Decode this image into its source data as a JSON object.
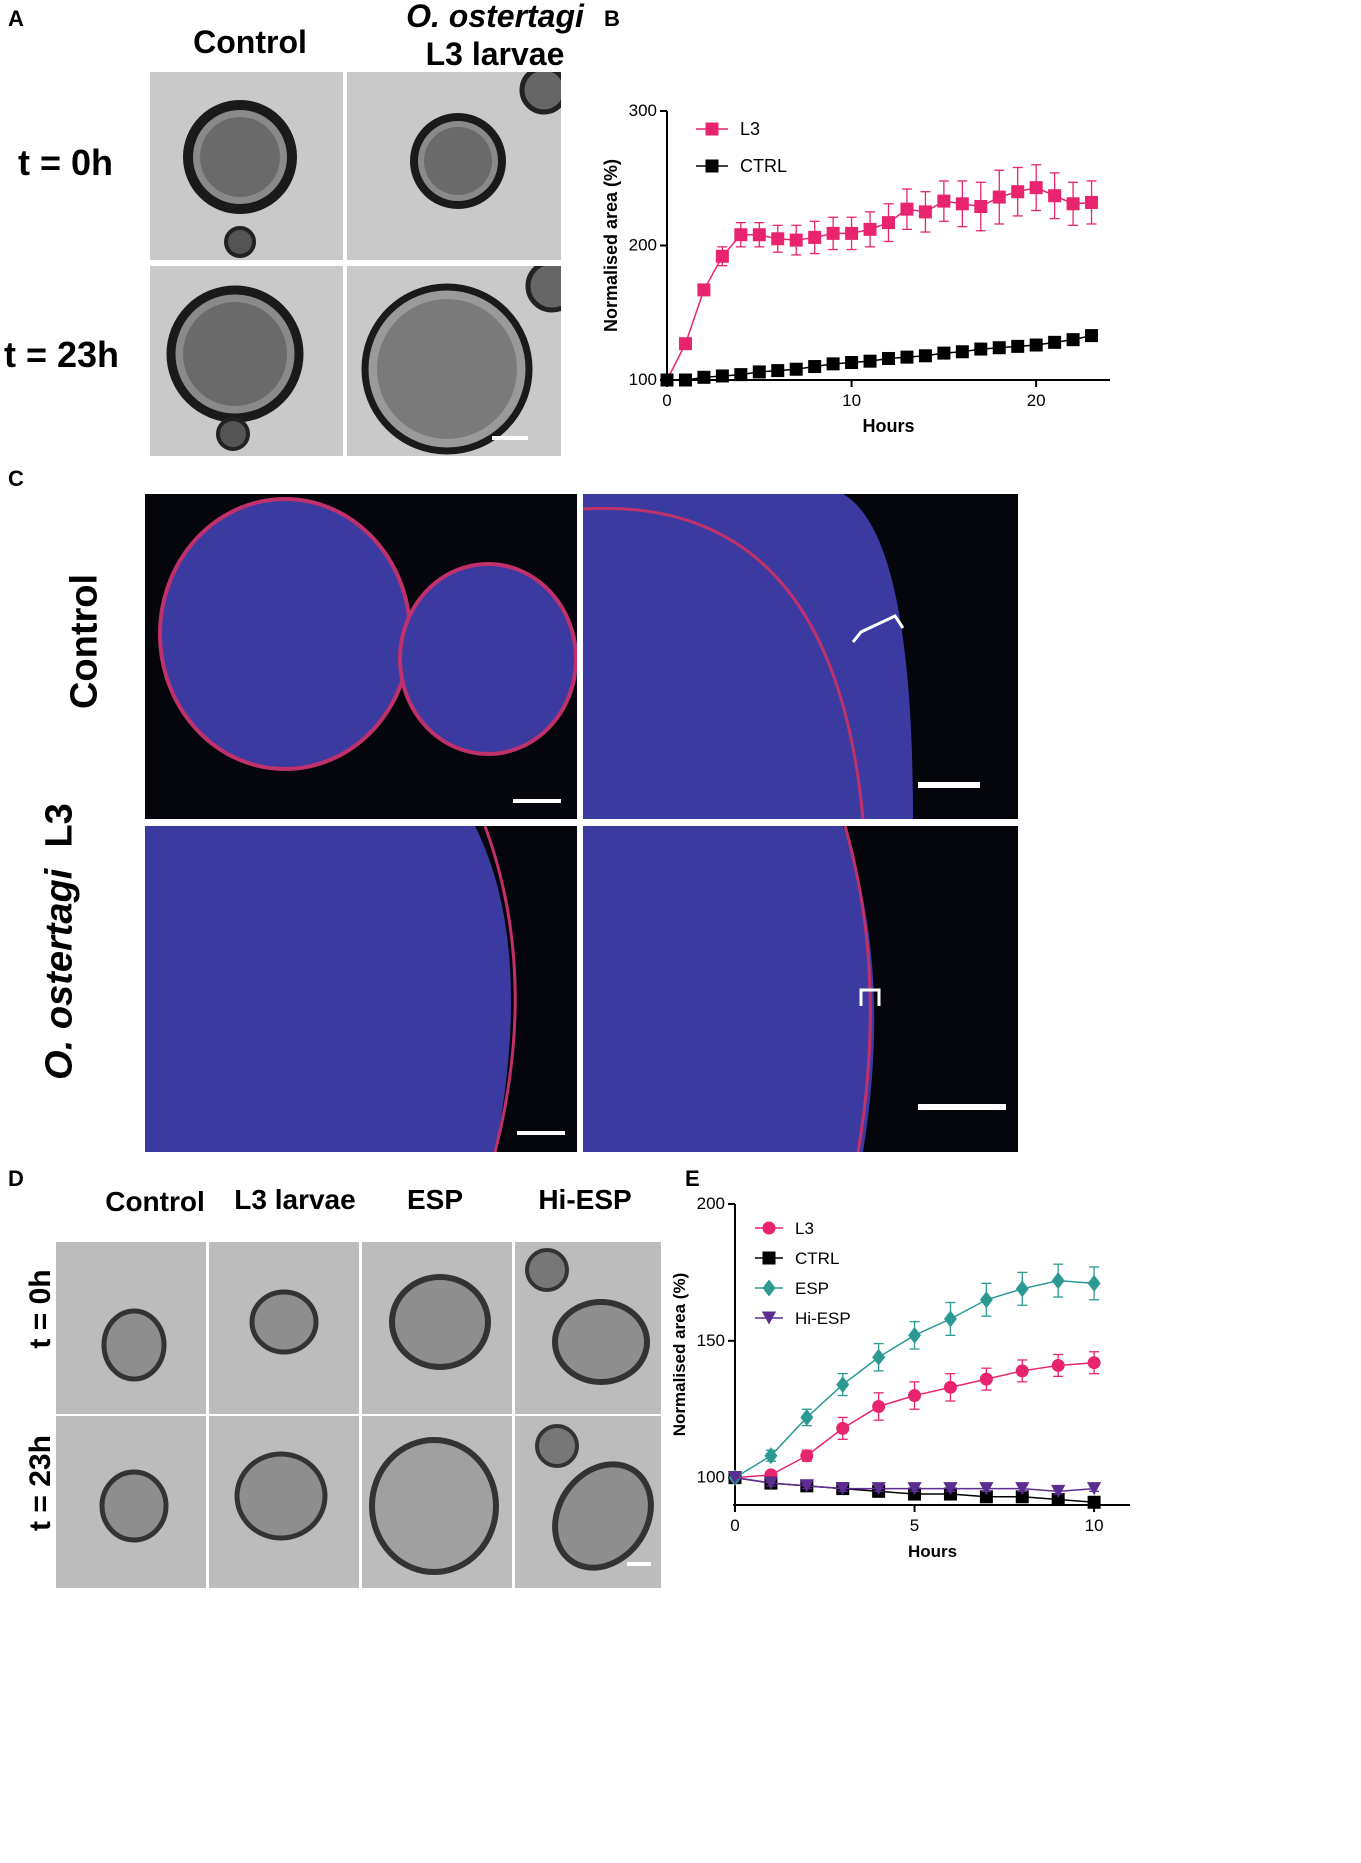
{
  "panels": {
    "A": {
      "label": "A",
      "col_headers": [
        "Control",
        "O. ostertagi",
        "L3 larvae"
      ],
      "row_labels": [
        "t = 0h",
        "t = 23h"
      ]
    },
    "B": {
      "label": "B"
    },
    "C": {
      "label": "C",
      "row_labels": [
        "Control",
        "O. ostertagi",
        "L3"
      ]
    },
    "D": {
      "label": "D",
      "col_headers": [
        "Control",
        "L3 larvae",
        "ESP",
        "Hi-ESP"
      ],
      "row_labels": [
        "t = 0h",
        "t = 23h"
      ]
    },
    "E": {
      "label": "E"
    }
  },
  "colors": {
    "L3": "#e8246f",
    "CTRL": "#000000",
    "ESP": "#2a9a93",
    "Hi-ESP": "#5b2d91"
  },
  "chart_data": [
    {
      "type": "line",
      "panel": "B",
      "xlabel": "Hours",
      "ylabel": "Normalised area (%)",
      "xlim": [
        0,
        24
      ],
      "ylim": [
        100,
        300
      ],
      "xticks": [
        0,
        10,
        20
      ],
      "yticks": [
        100,
        200,
        300
      ],
      "legend_position": "top-left",
      "series": [
        {
          "name": "L3",
          "marker": "square",
          "x": [
            0,
            1,
            2,
            3,
            4,
            5,
            6,
            7,
            8,
            9,
            10,
            11,
            12,
            13,
            14,
            15,
            16,
            17,
            18,
            19,
            20,
            21,
            22,
            23
          ],
          "values": [
            100,
            127,
            167,
            192,
            208,
            208,
            205,
            204,
            206,
            209,
            209,
            212,
            217,
            227,
            225,
            233,
            231,
            229,
            236,
            240,
            243,
            237,
            231,
            232
          ],
          "error": [
            0,
            3,
            4,
            7,
            9,
            9,
            10,
            11,
            12,
            12,
            12,
            13,
            14,
            15,
            15,
            15,
            17,
            18,
            20,
            18,
            17,
            17,
            16,
            16
          ]
        },
        {
          "name": "CTRL",
          "marker": "square",
          "x": [
            0,
            1,
            2,
            3,
            4,
            5,
            6,
            7,
            8,
            9,
            10,
            11,
            12,
            13,
            14,
            15,
            16,
            17,
            18,
            19,
            20,
            21,
            22,
            23
          ],
          "values": [
            100,
            100,
            102,
            103,
            104,
            106,
            107,
            108,
            110,
            112,
            113,
            114,
            116,
            117,
            118,
            120,
            121,
            123,
            124,
            125,
            126,
            128,
            130,
            133
          ]
        }
      ]
    },
    {
      "type": "line",
      "panel": "E",
      "xlabel": "Hours",
      "ylabel": "Normalised area (%)",
      "xlim": [
        0,
        11
      ],
      "ylim": [
        90,
        200
      ],
      "xticks": [
        0,
        5,
        10
      ],
      "yticks": [
        100,
        150,
        200
      ],
      "legend_position": "top-left",
      "series": [
        {
          "name": "L3",
          "marker": "circle",
          "x": [
            0,
            1,
            2,
            3,
            4,
            5,
            6,
            7,
            8,
            9,
            10
          ],
          "values": [
            100,
            101,
            108,
            118,
            126,
            130,
            133,
            136,
            139,
            141,
            142
          ],
          "error": [
            0,
            1,
            2,
            4,
            5,
            5,
            5,
            4,
            4,
            4,
            4
          ]
        },
        {
          "name": "CTRL",
          "marker": "square",
          "x": [
            0,
            1,
            2,
            3,
            4,
            5,
            6,
            7,
            8,
            9,
            10
          ],
          "values": [
            100,
            98,
            97,
            96,
            95,
            94,
            94,
            93,
            93,
            92,
            91
          ],
          "error": [
            0,
            1,
            1,
            1,
            1,
            1,
            1,
            1,
            1,
            1,
            1
          ]
        },
        {
          "name": "ESP",
          "marker": "diamond",
          "x": [
            0,
            1,
            2,
            3,
            4,
            5,
            6,
            7,
            8,
            9,
            10
          ],
          "values": [
            100,
            108,
            122,
            134,
            144,
            152,
            158,
            165,
            169,
            172,
            171
          ],
          "error": [
            0,
            2,
            3,
            4,
            5,
            5,
            6,
            6,
            6,
            6,
            6
          ]
        },
        {
          "name": "Hi-ESP",
          "marker": "triangle-down",
          "x": [
            0,
            1,
            2,
            3,
            4,
            5,
            6,
            7,
            8,
            9,
            10
          ],
          "values": [
            100,
            98,
            97,
            96,
            96,
            96,
            96,
            96,
            96,
            95,
            96
          ],
          "error": [
            0,
            1,
            1,
            1,
            1,
            1,
            1,
            1,
            1,
            1,
            1
          ]
        }
      ]
    }
  ]
}
